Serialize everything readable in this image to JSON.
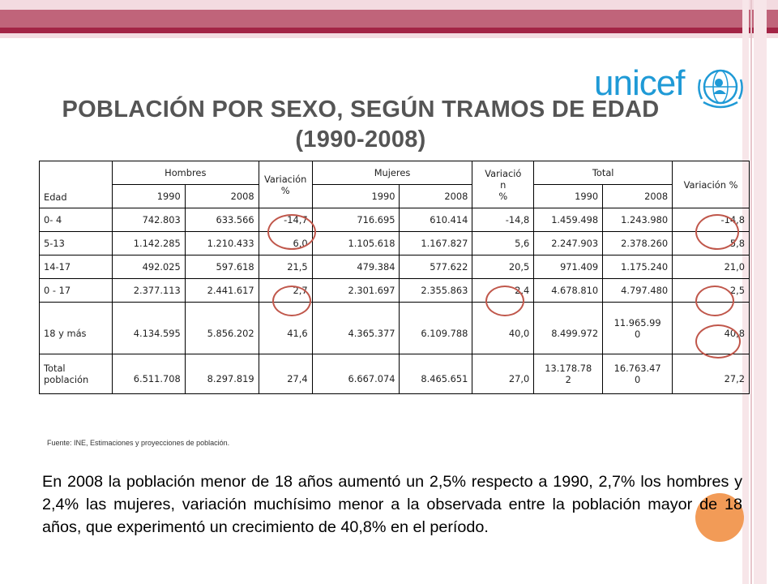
{
  "title_line1": "POBLACIÓN POR SEXO, SEGÚN TRAMOS DE EDAD",
  "title_line2": "(1990-2008)",
  "logo_text": "unicef",
  "table": {
    "col_edad": "Edad",
    "group_hombres": "Hombres",
    "group_mujeres": "Mujeres",
    "group_total": "Total",
    "var_hombres": "Variación %",
    "var_mujeres_1": "Variació",
    "var_mujeres_2": "n",
    "var_mujeres_3": "%",
    "var_total": "Variación %",
    "year_a": "1990",
    "year_b": "2008",
    "rows": [
      {
        "edad": "0- 4",
        "h90": "742.803",
        "h08": "633.566",
        "hv": "-14,7",
        "m90": "716.695",
        "m08": "610.414",
        "mv": "-14,8",
        "t90": "1.459.498",
        "t08": "1.243.980",
        "tv": "-14,8"
      },
      {
        "edad": "5-13",
        "h90": "1.142.285",
        "h08": "1.210.433",
        "hv": "6,0",
        "m90": "1.105.618",
        "m08": "1.167.827",
        "mv": "5,6",
        "t90": "2.247.903",
        "t08": "2.378.260",
        "tv": "5,8"
      },
      {
        "edad": "14-17",
        "h90": "492.025",
        "h08": "597.618",
        "hv": "21,5",
        "m90": "479.384",
        "m08": "577.622",
        "mv": "20,5",
        "t90": "971.409",
        "t08": "1.175.240",
        "tv": "21,0"
      },
      {
        "edad": "0 - 17",
        "h90": "2.377.113",
        "h08": "2.441.617",
        "hv": "2,7",
        "m90": "2.301.697",
        "m08": "2.355.863",
        "mv": "2,4",
        "t90": "4.678.810",
        "t08": "4.797.480",
        "tv": "2,5"
      },
      {
        "edad": "18 y más",
        "h90": "4.134.595",
        "h08": "5.856.202",
        "hv": "41,6",
        "m90": "4.365.377",
        "m08": "6.109.788",
        "mv": "40,0",
        "t90": "8.499.972",
        "t08_1": "11.965.99",
        "t08_2": "0",
        "tv": "40,8"
      },
      {
        "edad_1": "Total",
        "edad_2": "población",
        "h90": "6.511.708",
        "h08": "8.297.819",
        "hv": "27,4",
        "m90": "6.667.074",
        "m08": "8.465.651",
        "mv": "27,0",
        "t90_1": "13.178.78",
        "t90_2": "2",
        "t08_1": "16.763.47",
        "t08_2": "0",
        "tv": "27,2"
      }
    ]
  },
  "source": "Fuente: INE, Estimaciones y proyecciones de población.",
  "paragraph": "En 2008 la población menor de 18 años aumentó un 2,5% respecto a 1990, 2,7% los hombres y 2,4% las mujeres, variación muchísimo menor a la observada entre la población mayor de 18 años, que experimentó un crecimiento de 40,8% en el período.",
  "colors": {
    "band": "#c0647a",
    "band_dark": "#a32445",
    "unicef_blue": "#1f9ad6",
    "circle": "#c0574b",
    "dot": "#f29b57"
  }
}
